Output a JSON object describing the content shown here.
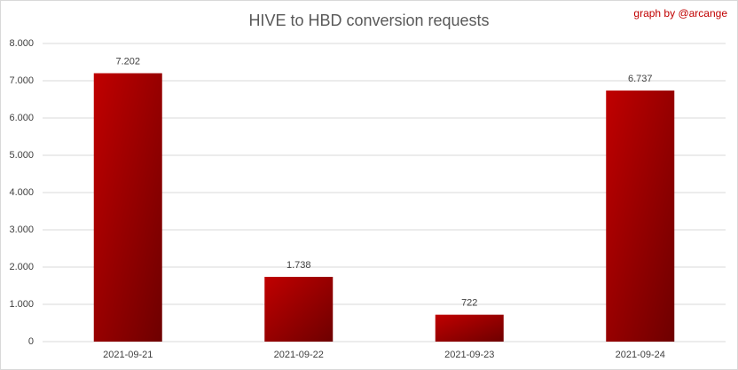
{
  "chart_data": {
    "type": "bar",
    "title": "HIVE to HBD conversion requests",
    "annotation": "graph by @arcange",
    "categories": [
      "2021-09-21",
      "2021-09-22",
      "2021-09-23",
      "2021-09-24"
    ],
    "values": [
      7202,
      1738,
      722,
      6737
    ],
    "value_labels": [
      "7.202",
      "1.738",
      "722",
      "6.737"
    ],
    "color": "#c00000",
    "ylim": [
      0,
      8000
    ],
    "yticks": [
      0,
      {
        "value": 1000,
        "label": "1.000"
      },
      {
        "value": 2000,
        "label": "2.000"
      },
      {
        "value": 3000,
        "label": "3.000"
      },
      {
        "value": 4000,
        "label": "4.000"
      },
      {
        "value": 5000,
        "label": "5.000"
      },
      {
        "value": 6000,
        "label": "6.000"
      },
      {
        "value": 7000,
        "label": "7.000"
      },
      {
        "value": 8000,
        "label": "8.000"
      }
    ],
    "grid": true
  }
}
